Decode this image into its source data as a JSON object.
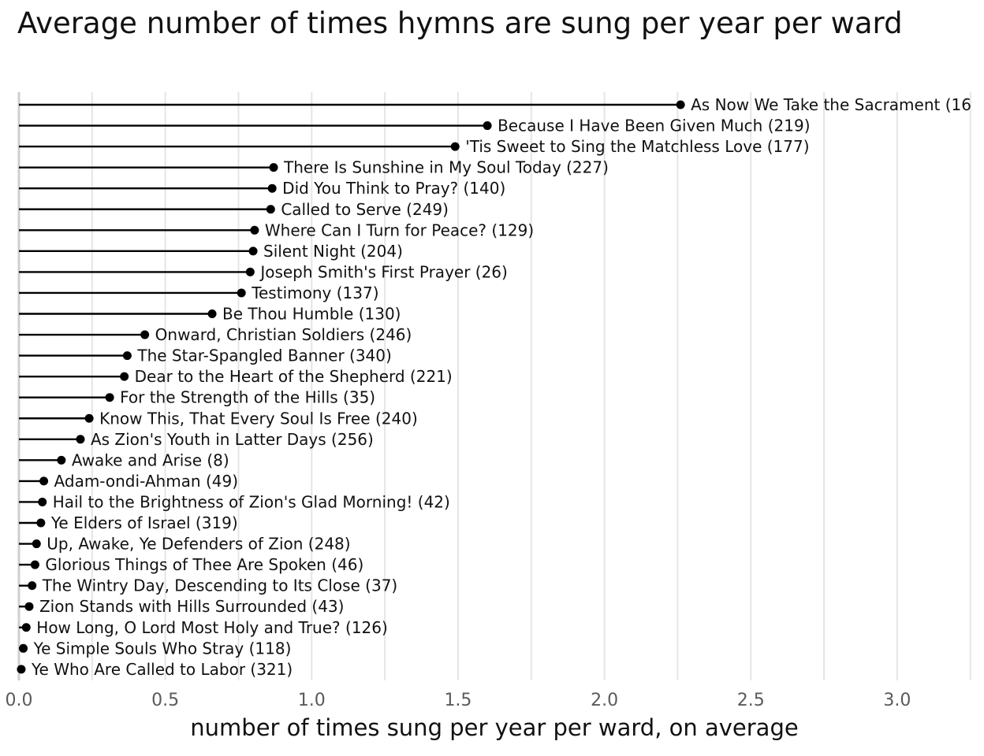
{
  "chart_data": {
    "type": "lollipop",
    "title": "Average number of times hymns are sung per year per ward",
    "xlabel": "number of times sung per year per ward, on average",
    "ylabel": "",
    "xlim": [
      0,
      3.25
    ],
    "x_ticks": [
      "0.0",
      "0.5",
      "1.0",
      "1.5",
      "2.0",
      "2.5",
      "3.0"
    ],
    "grid": "vertical",
    "colors": {
      "marks": "#000000",
      "grid": "#e5e5e5",
      "tick_text": "#5a5a5a"
    },
    "points": [
      {
        "label": "As Now We Take the Sacrament (16",
        "value": 2.26
      },
      {
        "label": "Because I Have Been Given Much (219)",
        "value": 1.6
      },
      {
        "label": "'Tis Sweet to Sing the Matchless Love (177)",
        "value": 1.49
      },
      {
        "label": "There Is Sunshine in My Soul Today (227)",
        "value": 0.87
      },
      {
        "label": "Did You Think to Pray? (140)",
        "value": 0.865
      },
      {
        "label": "Called to Serve (249)",
        "value": 0.86
      },
      {
        "label": "Where Can I Turn for Peace? (129)",
        "value": 0.805
      },
      {
        "label": "Silent Night (204)",
        "value": 0.8
      },
      {
        "label": "Joseph Smith's First Prayer (26)",
        "value": 0.79
      },
      {
        "label": "Testimony (137)",
        "value": 0.76
      },
      {
        "label": "Be Thou Humble (130)",
        "value": 0.66
      },
      {
        "label": "Onward, Christian Soldiers (246)",
        "value": 0.43
      },
      {
        "label": "The Star-Spangled Banner (340)",
        "value": 0.37
      },
      {
        "label": "Dear to the Heart of the Shepherd (221)",
        "value": 0.36
      },
      {
        "label": "For the Strength of the Hills (35)",
        "value": 0.31
      },
      {
        "label": "Know This, That Every Soul Is Free (240)",
        "value": 0.24
      },
      {
        "label": "As Zion's Youth in Latter Days (256)",
        "value": 0.21
      },
      {
        "label": "Awake and Arise (8)",
        "value": 0.145
      },
      {
        "label": "Adam-ondi-Ahman (49)",
        "value": 0.085
      },
      {
        "label": "Hail to the Brightness of Zion's Glad Morning! (42)",
        "value": 0.08
      },
      {
        "label": "Ye Elders of Israel (319)",
        "value": 0.075
      },
      {
        "label": "Up, Awake, Ye Defenders of Zion (248)",
        "value": 0.06
      },
      {
        "label": "Glorious Things of Thee Are Spoken (46)",
        "value": 0.055
      },
      {
        "label": "The Wintry Day, Descending to Its Close (37)",
        "value": 0.045
      },
      {
        "label": "Zion Stands with Hills Surrounded (43)",
        "value": 0.035
      },
      {
        "label": "How Long, O Lord Most Holy and True? (126)",
        "value": 0.025
      },
      {
        "label": "Ye Simple Souls Who Stray (118)",
        "value": 0.015
      },
      {
        "label": "Ye Who Are Called to Labor (321)",
        "value": 0.008
      }
    ]
  }
}
